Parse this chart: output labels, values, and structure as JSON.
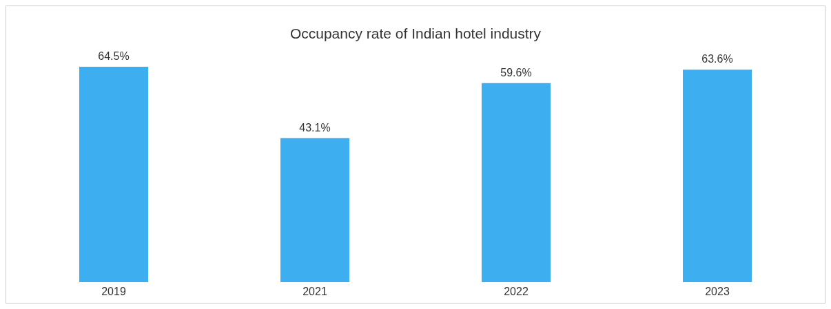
{
  "chart_data": {
    "type": "bar",
    "title": "Occupancy rate of Indian hotel industry",
    "categories": [
      "2019",
      "2021",
      "2022",
      "2023"
    ],
    "values": [
      64.5,
      43.1,
      59.6,
      63.6
    ],
    "value_labels": [
      "64.5%",
      "43.1%",
      "59.6%",
      "63.6%"
    ],
    "color": "#3daef0",
    "grid": false,
    "legend": false
  }
}
